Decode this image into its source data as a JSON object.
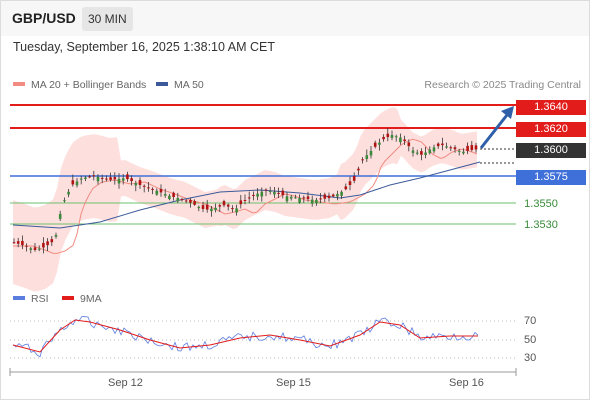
{
  "header": {
    "pair": "GBP/USD",
    "timeframe": "30 MIN"
  },
  "datetime": "Tuesday, September 16, 2025 1:38:10 AM CET",
  "legend": {
    "ma20": {
      "label": "MA 20 + Bollinger Bands",
      "color": "#f28b82"
    },
    "ma50": {
      "label": "MA 50",
      "color": "#3c5a9a"
    },
    "credit": "Research © 2025 Trading Central"
  },
  "levels": {
    "r2": {
      "label": "1.3640",
      "color": "#e21b1b"
    },
    "r1": {
      "label": "1.3620",
      "color": "#e21b1b"
    },
    "last": {
      "label": "1.3600",
      "color": "#333333"
    },
    "pivot": {
      "label": "1.3575",
      "color": "#3f6fd8"
    },
    "s1": {
      "label": "1.3550",
      "color": "#6bbf6b"
    },
    "s2": {
      "label": "1.3530",
      "color": "#6bbf6b"
    }
  },
  "rsi": {
    "legend_rsi": "RSI",
    "legend_9ma": "9MA",
    "rsi_color": "#5b7de0",
    "ma_color": "#e21b1b",
    "levels": [
      "70",
      "50",
      "30"
    ]
  },
  "xaxis": {
    "labels": [
      "Sep 12",
      "Sep 15",
      "Sep 16"
    ]
  }
}
